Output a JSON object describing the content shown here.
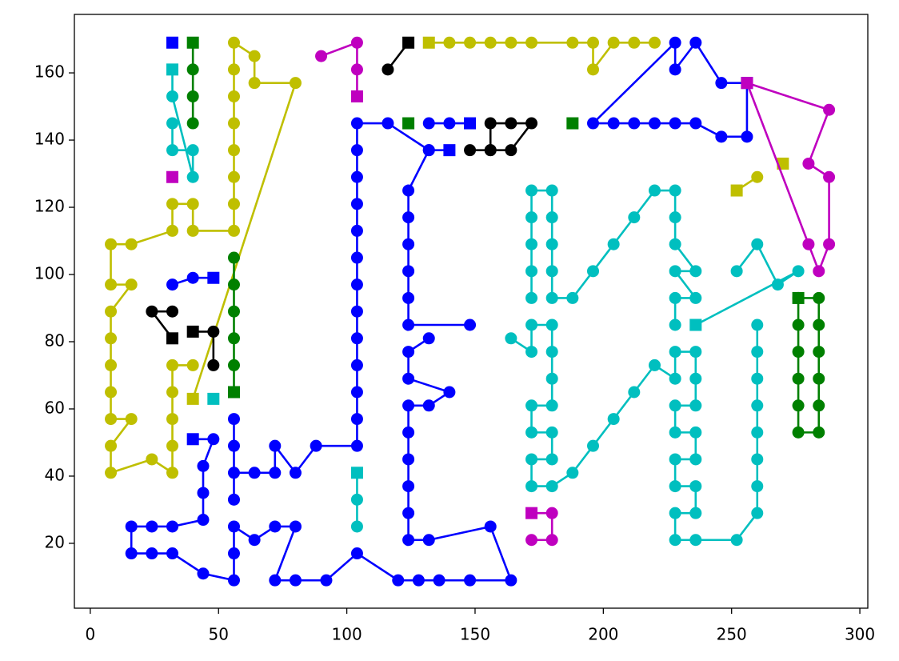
{
  "chart_data": {
    "type": "line",
    "xlim": [
      -6.2,
      303.1
    ],
    "ylim": [
      0.7,
      177.4
    ],
    "xticks": [
      0,
      50,
      100,
      150,
      200,
      250,
      300
    ],
    "yticks": [
      20,
      40,
      60,
      80,
      100,
      120,
      140,
      160
    ],
    "series": [
      {
        "color": "#bfbf00",
        "first_marker": "square",
        "x": [
          40,
          80,
          64,
          64,
          56,
          56,
          56,
          56,
          56,
          56,
          56,
          56,
          40,
          40,
          32,
          32,
          16,
          8,
          8,
          16,
          8,
          8,
          8,
          8,
          8,
          16,
          8,
          8,
          24,
          32,
          32,
          32,
          32,
          32,
          40
        ],
        "values": [
          63,
          157,
          157,
          165,
          169,
          161,
          153,
          145,
          137,
          129,
          121,
          113,
          113,
          121,
          121,
          113,
          109,
          109,
          97,
          97,
          89,
          81,
          73,
          65,
          57,
          57,
          49,
          41,
          45,
          41,
          49,
          57,
          65,
          73,
          73
        ]
      },
      {
        "color": "#bfbf00",
        "first_marker": "square",
        "x": [
          132,
          140,
          148,
          156,
          164,
          172,
          188,
          196,
          196,
          204,
          212,
          220
        ],
        "values": [
          169,
          169,
          169,
          169,
          169,
          169,
          169,
          169,
          161,
          169,
          169,
          169
        ]
      },
      {
        "color": "#bfbf00",
        "first_marker": "square",
        "x": [
          252,
          260
        ],
        "values": [
          125,
          129
        ]
      },
      {
        "color": "#bfbf00",
        "first_marker": "square",
        "x": [
          270
        ],
        "values": [
          133
        ]
      },
      {
        "color": "#00bfbf",
        "first_marker": "square",
        "x": [
          32,
          32,
          40,
          40,
          32,
          32
        ],
        "values": [
          161,
          153,
          129,
          137,
          137,
          145
        ]
      },
      {
        "color": "#00bfbf",
        "first_marker": "square",
        "x": [
          48
        ],
        "values": [
          63
        ]
      },
      {
        "color": "#00bfbf",
        "first_marker": "square",
        "x": [
          104,
          104,
          104
        ],
        "values": [
          41,
          33,
          25
        ]
      },
      {
        "color": "#00bfbf",
        "first_marker": "square",
        "x": [
          236,
          276,
          268,
          260,
          252
        ],
        "values": [
          85,
          101,
          97,
          109,
          101
        ]
      },
      {
        "color": "#00bfbf",
        "first_marker": "circle",
        "x": [
          260,
          260,
          260,
          260,
          260,
          260,
          260,
          260,
          252,
          236,
          228,
          228,
          236,
          236,
          228,
          228,
          236,
          236,
          228,
          228,
          236,
          236,
          236,
          228,
          228,
          220,
          212,
          204,
          196,
          188,
          180,
          172,
          172,
          180,
          180,
          172,
          172,
          180,
          180,
          180,
          180,
          172,
          172,
          164
        ],
        "values": [
          85,
          77,
          69,
          61,
          53,
          45,
          37,
          29,
          21,
          21,
          21,
          29,
          29,
          37,
          37,
          45,
          45,
          53,
          53,
          61,
          61,
          69,
          77,
          77,
          69,
          73,
          65,
          57,
          49,
          41,
          37,
          37,
          45,
          45,
          53,
          53,
          61,
          61,
          69,
          77,
          85,
          85,
          77,
          81
        ]
      },
      {
        "color": "#00bfbf",
        "first_marker": "circle",
        "x": [
          228,
          228,
          236,
          228,
          236,
          228,
          228,
          228,
          220,
          212,
          204,
          196,
          188,
          180,
          180,
          180,
          180,
          180,
          172,
          172,
          172,
          172,
          172
        ],
        "values": [
          85,
          93,
          93,
          101,
          101,
          109,
          117,
          125,
          125,
          117,
          109,
          101,
          93,
          93,
          101,
          109,
          117,
          125,
          125,
          117,
          109,
          101,
          93
        ]
      },
      {
        "color": "#0000ff",
        "first_marker": "square",
        "x": [
          32
        ],
        "values": [
          169
        ]
      },
      {
        "color": "#0000ff",
        "first_marker": "square",
        "x": [
          48,
          40,
          32
        ],
        "values": [
          99,
          99,
          97
        ]
      },
      {
        "color": "#0000ff",
        "first_marker": "square",
        "x": [
          40,
          48,
          44,
          44,
          44,
          32,
          24,
          16,
          16,
          24,
          32,
          44,
          56,
          56,
          56,
          64,
          72,
          80,
          72,
          80,
          92,
          104,
          120,
          128,
          136,
          148,
          164,
          156,
          132,
          124,
          124,
          124,
          124,
          124,
          124,
          132,
          140,
          124,
          124,
          132
        ],
        "values": [
          51,
          51,
          43,
          35,
          27,
          25,
          25,
          25,
          17,
          17,
          17,
          11,
          9,
          17,
          25,
          21,
          25,
          25,
          9,
          9,
          9,
          17,
          9,
          9,
          9,
          9,
          9,
          25,
          21,
          21,
          29,
          37,
          45,
          53,
          61,
          61,
          65,
          69,
          77,
          81
        ]
      },
      {
        "color": "#0000ff",
        "first_marker": "square",
        "x": [
          140,
          132,
          124,
          124,
          124,
          124,
          124,
          124,
          148
        ],
        "values": [
          137,
          137,
          125,
          117,
          109,
          101,
          93,
          85,
          85
        ]
      },
      {
        "color": "#0000ff",
        "first_marker": "circle",
        "x": [
          132,
          116,
          104,
          104,
          104,
          104,
          104,
          104,
          104,
          104,
          104,
          104,
          104,
          104,
          104,
          88,
          80,
          72,
          72,
          64,
          56,
          56,
          56,
          56
        ],
        "values": [
          137,
          145,
          145,
          137,
          129,
          121,
          113,
          105,
          97,
          89,
          81,
          73,
          65,
          57,
          49,
          49,
          41,
          49,
          41,
          41,
          41,
          49,
          57,
          33
        ]
      },
      {
        "color": "#0000ff",
        "first_marker": "square",
        "x": [
          148,
          140,
          132
        ],
        "values": [
          145,
          145,
          145
        ]
      },
      {
        "color": "#0000ff",
        "first_marker": "square",
        "x": [
          256,
          246,
          236,
          228,
          228,
          196,
          204,
          212,
          220,
          228,
          236,
          246,
          256,
          256
        ],
        "values": [
          157,
          157,
          169,
          161,
          169,
          145,
          145,
          145,
          145,
          145,
          145,
          141,
          141,
          157
        ]
      },
      {
        "color": "#000000",
        "first_marker": "square",
        "x": [
          124,
          116
        ],
        "values": [
          169,
          161
        ]
      },
      {
        "color": "#000000",
        "first_marker": "square",
        "x": [
          32,
          24,
          32
        ],
        "values": [
          81,
          89,
          89
        ]
      },
      {
        "color": "#000000",
        "first_marker": "square",
        "x": [
          40,
          48,
          48
        ],
        "values": [
          83,
          83,
          73
        ]
      },
      {
        "color": "#000000",
        "first_marker": "circle",
        "x": [
          148,
          156,
          164,
          172,
          164,
          156,
          156
        ],
        "values": [
          137,
          137,
          137,
          145,
          145,
          145,
          137
        ]
      },
      {
        "color": "#008000",
        "first_marker": "square",
        "x": [
          40,
          40,
          40,
          40
        ],
        "values": [
          169,
          161,
          153,
          145
        ]
      },
      {
        "color": "#008000",
        "first_marker": "square",
        "x": [
          56,
          56,
          56,
          56,
          56,
          56
        ],
        "values": [
          65,
          73,
          81,
          89,
          97,
          105
        ]
      },
      {
        "color": "#008000",
        "first_marker": "square",
        "x": [
          124
        ],
        "values": [
          145
        ]
      },
      {
        "color": "#008000",
        "first_marker": "square",
        "x": [
          188
        ],
        "values": [
          145
        ]
      },
      {
        "color": "#008000",
        "first_marker": "square",
        "x": [
          276,
          284,
          284,
          284,
          284,
          284,
          284,
          276,
          276,
          276,
          276,
          276,
          276
        ],
        "values": [
          93,
          93,
          85,
          77,
          69,
          61,
          53,
          53,
          61,
          69,
          77,
          85,
          93
        ]
      },
      {
        "color": "#bf00bf",
        "first_marker": "square",
        "x": [
          32
        ],
        "values": [
          129
        ]
      },
      {
        "color": "#bf00bf",
        "first_marker": "square",
        "x": [
          104,
          104,
          104,
          90
        ],
        "values": [
          153,
          161,
          169,
          165
        ]
      },
      {
        "color": "#bf00bf",
        "first_marker": "square",
        "x": [
          172,
          180,
          180,
          172
        ],
        "values": [
          29,
          29,
          21,
          21
        ]
      },
      {
        "color": "#bf00bf",
        "first_marker": "square",
        "x": [
          256,
          288,
          280,
          288,
          288,
          284,
          280,
          256
        ],
        "values": [
          157,
          149,
          133,
          129,
          109,
          101,
          109,
          157
        ]
      }
    ]
  }
}
